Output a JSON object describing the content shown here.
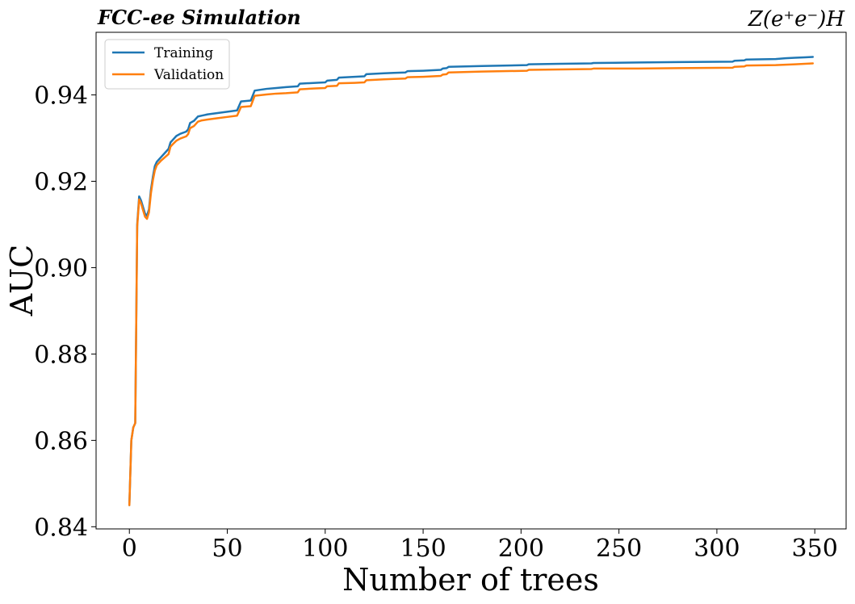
{
  "chart_data": {
    "type": "line",
    "title_left": "FCC-ee Simulation",
    "title_right": "Z(e⁺e⁻)H",
    "xlabel": "Number of trees",
    "ylabel": "AUC",
    "xlim": [
      -17,
      366
    ],
    "ylim": [
      0.8395,
      0.9545
    ],
    "xticks": [
      0,
      50,
      100,
      150,
      200,
      250,
      300,
      350
    ],
    "yticks": [
      0.84,
      0.86,
      0.88,
      0.9,
      0.92,
      0.94
    ],
    "ytick_labels": [
      "0.84",
      "0.86",
      "0.88",
      "0.90",
      "0.92",
      "0.94"
    ],
    "grid": false,
    "legend_position": "top-left",
    "series": [
      {
        "name": "Training",
        "color": "#1f77b4",
        "points": [
          [
            0,
            0.845
          ],
          [
            1,
            0.86
          ],
          [
            2,
            0.863
          ],
          [
            3,
            0.864
          ],
          [
            4,
            0.91
          ],
          [
            5,
            0.9165
          ],
          [
            6,
            0.9155
          ],
          [
            7,
            0.914
          ],
          [
            8,
            0.9125
          ],
          [
            9,
            0.912
          ],
          [
            10,
            0.9135
          ],
          [
            11,
            0.918
          ],
          [
            12,
            0.921
          ],
          [
            13,
            0.9235
          ],
          [
            14,
            0.9245
          ],
          [
            15,
            0.925
          ],
          [
            16,
            0.9255
          ],
          [
            18,
            0.9265
          ],
          [
            20,
            0.9275
          ],
          [
            21,
            0.929
          ],
          [
            22,
            0.9295
          ],
          [
            24,
            0.9305
          ],
          [
            26,
            0.931
          ],
          [
            29,
            0.9315
          ],
          [
            30,
            0.932
          ],
          [
            31,
            0.9335
          ],
          [
            33,
            0.934
          ],
          [
            35,
            0.935
          ],
          [
            37,
            0.9352
          ],
          [
            40,
            0.9355
          ],
          [
            45,
            0.9358
          ],
          [
            50,
            0.9361
          ],
          [
            55,
            0.9364
          ],
          [
            57,
            0.9385
          ],
          [
            62,
            0.9387
          ],
          [
            64,
            0.941
          ],
          [
            70,
            0.9414
          ],
          [
            75,
            0.9416
          ],
          [
            80,
            0.9418
          ],
          [
            86,
            0.942
          ],
          [
            87,
            0.9426
          ],
          [
            95,
            0.9428
          ],
          [
            100,
            0.9429
          ],
          [
            101,
            0.9433
          ],
          [
            106,
            0.9435
          ],
          [
            107,
            0.944
          ],
          [
            115,
            0.9442
          ],
          [
            120,
            0.9443
          ],
          [
            121,
            0.9448
          ],
          [
            130,
            0.945
          ],
          [
            135,
            0.9451
          ],
          [
            141,
            0.9452
          ],
          [
            142,
            0.9455
          ],
          [
            150,
            0.9456
          ],
          [
            159,
            0.9458
          ],
          [
            160,
            0.9461
          ],
          [
            162,
            0.9462
          ],
          [
            163,
            0.9465
          ],
          [
            180,
            0.9467
          ],
          [
            203,
            0.9469
          ],
          [
            204,
            0.9471
          ],
          [
            220,
            0.9472
          ],
          [
            236,
            0.9473
          ],
          [
            237,
            0.9474
          ],
          [
            260,
            0.9475
          ],
          [
            280,
            0.9476
          ],
          [
            308,
            0.9477
          ],
          [
            309,
            0.9479
          ],
          [
            314,
            0.948
          ],
          [
            315,
            0.9482
          ],
          [
            330,
            0.9483
          ],
          [
            335,
            0.9485
          ],
          [
            340,
            0.9486
          ],
          [
            345,
            0.9487
          ],
          [
            349,
            0.9488
          ]
        ]
      },
      {
        "name": "Validation",
        "color": "#ff7f0e",
        "points": [
          [
            0,
            0.845
          ],
          [
            1,
            0.86
          ],
          [
            2,
            0.863
          ],
          [
            3,
            0.864
          ],
          [
            4,
            0.9095
          ],
          [
            5,
            0.9158
          ],
          [
            6,
            0.9148
          ],
          [
            7,
            0.9133
          ],
          [
            8,
            0.9118
          ],
          [
            9,
            0.9113
          ],
          [
            10,
            0.9128
          ],
          [
            11,
            0.9172
          ],
          [
            12,
            0.9202
          ],
          [
            13,
            0.9225
          ],
          [
            14,
            0.9237
          ],
          [
            15,
            0.9242
          ],
          [
            16,
            0.9247
          ],
          [
            18,
            0.9255
          ],
          [
            20,
            0.9263
          ],
          [
            21,
            0.928
          ],
          [
            22,
            0.9285
          ],
          [
            24,
            0.9294
          ],
          [
            26,
            0.9299
          ],
          [
            29,
            0.9304
          ],
          [
            30,
            0.9309
          ],
          [
            31,
            0.9323
          ],
          [
            33,
            0.9328
          ],
          [
            35,
            0.9338
          ],
          [
            37,
            0.9341
          ],
          [
            40,
            0.9343
          ],
          [
            45,
            0.9346
          ],
          [
            50,
            0.9349
          ],
          [
            55,
            0.9352
          ],
          [
            57,
            0.9372
          ],
          [
            62,
            0.9374
          ],
          [
            64,
            0.9398
          ],
          [
            70,
            0.9401
          ],
          [
            75,
            0.9403
          ],
          [
            80,
            0.9404
          ],
          [
            86,
            0.9406
          ],
          [
            87,
            0.9413
          ],
          [
            95,
            0.9415
          ],
          [
            100,
            0.9416
          ],
          [
            101,
            0.942
          ],
          [
            106,
            0.9421
          ],
          [
            107,
            0.9427
          ],
          [
            115,
            0.9428
          ],
          [
            120,
            0.9429
          ],
          [
            121,
            0.9434
          ],
          [
            130,
            0.9436
          ],
          [
            135,
            0.9437
          ],
          [
            141,
            0.9438
          ],
          [
            142,
            0.9441
          ],
          [
            150,
            0.9442
          ],
          [
            159,
            0.9444
          ],
          [
            160,
            0.9447
          ],
          [
            162,
            0.9448
          ],
          [
            163,
            0.9452
          ],
          [
            180,
            0.9454
          ],
          [
            203,
            0.9456
          ],
          [
            204,
            0.9458
          ],
          [
            220,
            0.9459
          ],
          [
            236,
            0.946
          ],
          [
            237,
            0.9461
          ],
          [
            260,
            0.9461
          ],
          [
            280,
            0.9462
          ],
          [
            308,
            0.9463
          ],
          [
            309,
            0.9465
          ],
          [
            314,
            0.9466
          ],
          [
            315,
            0.9468
          ],
          [
            330,
            0.9469
          ],
          [
            335,
            0.947
          ],
          [
            340,
            0.9471
          ],
          [
            345,
            0.9472
          ],
          [
            349,
            0.9473
          ]
        ]
      }
    ]
  }
}
